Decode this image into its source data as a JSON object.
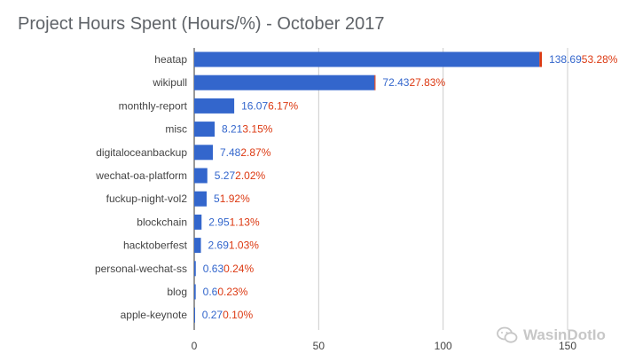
{
  "chart_data": {
    "type": "bar",
    "orientation": "horizontal",
    "title": "Project Hours Spent (Hours/%) - October 2017",
    "categories": [
      "heatap",
      "wikipull",
      "monthly-report",
      "misc",
      "digitaloceanbackup",
      "wechat-oa-platform",
      "fuckup-night-vol2",
      "blockchain",
      "hacktoberfest",
      "personal-wechat-ss",
      "blog",
      "apple-keynote"
    ],
    "series": [
      {
        "values": [
          138.69,
          72.43,
          16.07,
          8.21,
          7.48,
          5.27,
          5,
          2.95,
          2.69,
          0.63,
          0.6,
          0.27
        ],
        "color": "#3366cc"
      },
      {
        "values": [
          1,
          0.4,
          0,
          0,
          0,
          0,
          0,
          0,
          0,
          0,
          0,
          0
        ],
        "color": "#dc3912"
      }
    ],
    "value_labels": [
      "138.69",
      "72.43",
      "16.07",
      "8.21",
      "7.48",
      "5.27",
      "5",
      "2.95",
      "2.69",
      "0.63",
      "0.6",
      "0.27"
    ],
    "percent_labels": [
      "53.28%",
      "27.83%",
      "6.17%",
      "3.15%",
      "2.87%",
      "2.02%",
      "1.92%",
      "1.13%",
      "1.03%",
      "0.24%",
      "0.23%",
      "0.10%"
    ],
    "value_label_color": "#3366cc",
    "percent_label_color": "#dc3912",
    "stacked": true,
    "xlim": [
      0,
      150
    ],
    "xticks": [
      0,
      50,
      100,
      150
    ],
    "grid": true,
    "legend": "none",
    "xlabel": "",
    "ylabel": ""
  },
  "watermark": {
    "text": "WasinDotIo",
    "icon": "wechat-icon"
  }
}
